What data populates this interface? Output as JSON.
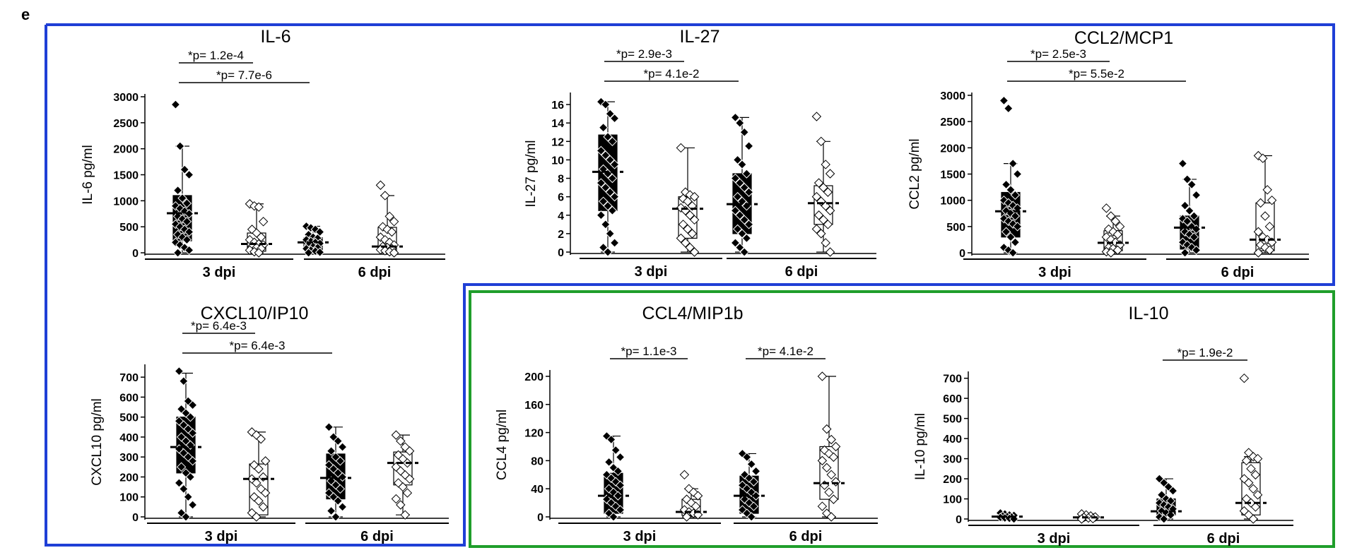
{
  "figure": {
    "corner_letter": "e",
    "box_colors": {
      "inflammatory": "#1f3fd6",
      "regulatory": "#1f9e2b"
    }
  },
  "chart_data": [
    {
      "type": "box",
      "title": "IL-6",
      "ylabel": "IL-6 pg/ml",
      "ylim": [
        0,
        3000
      ],
      "yticks": [
        0,
        500,
        1000,
        1500,
        2000,
        2500,
        3000
      ],
      "groups": [
        "3 dpi",
        "6 dpi"
      ],
      "series": [
        {
          "fill": "black",
          "min": 0,
          "q1": 230,
          "median": 760,
          "q3": 1100,
          "max": 2050,
          "points": [
            2850,
            2050,
            1600,
            1500,
            1200,
            1050,
            950,
            900,
            850,
            800,
            750,
            700,
            650,
            600,
            550,
            500,
            450,
            400,
            350,
            300,
            250,
            200,
            150,
            100,
            50,
            0
          ]
        },
        {
          "fill": "white",
          "min": 0,
          "q1": 30,
          "median": 170,
          "q3": 380,
          "max": 940,
          "points": [
            940,
            900,
            880,
            600,
            450,
            380,
            300,
            250,
            200,
            170,
            150,
            120,
            100,
            80,
            50,
            20,
            0
          ]
        },
        {
          "fill": "black",
          "min": 0,
          "q1": 60,
          "median": 200,
          "q3": 290,
          "max": 510,
          "points": [
            510,
            480,
            450,
            400,
            350,
            300,
            280,
            250,
            220,
            200,
            180,
            150,
            120,
            100,
            80,
            50,
            30,
            10,
            0
          ]
        },
        {
          "fill": "white",
          "min": 0,
          "q1": 30,
          "median": 120,
          "q3": 490,
          "max": 1100,
          "points": [
            1300,
            1100,
            700,
            600,
            500,
            450,
            400,
            300,
            250,
            200,
            150,
            120,
            100,
            80,
            60,
            40,
            20,
            0
          ]
        }
      ],
      "comparisons": [
        {
          "label": "*p= 1.2e-4",
          "from": 0,
          "to": 1
        },
        {
          "label": "*p= 7.7e-6",
          "from": 0,
          "to": 2
        }
      ]
    },
    {
      "type": "box",
      "title": "IL-27",
      "ylabel": "IL-27 pg/ml",
      "ylim": [
        0,
        17
      ],
      "yticks": [
        0,
        2,
        4,
        6,
        8,
        10,
        12,
        14,
        16
      ],
      "groups": [
        "3 dpi",
        "6 dpi"
      ],
      "series": [
        {
          "fill": "black",
          "min": 0,
          "q1": 4.5,
          "median": 8.7,
          "q3": 12.7,
          "max": 16.3,
          "points": [
            16.3,
            16,
            15,
            14.5,
            13.5,
            12.5,
            12,
            11,
            10.5,
            10,
            9.5,
            9,
            8.5,
            8,
            7.5,
            7,
            6.5,
            6,
            5.5,
            5,
            4.5,
            4,
            3,
            2,
            1,
            0.5,
            0
          ]
        },
        {
          "fill": "white",
          "min": 0,
          "q1": 1.5,
          "median": 4.7,
          "q3": 6,
          "max": 11.3,
          "points": [
            11.3,
            6.5,
            6.2,
            6,
            5.8,
            5.5,
            5,
            4.8,
            4.5,
            4,
            3.5,
            3,
            2.5,
            2,
            1.5,
            1,
            0.5,
            0
          ]
        },
        {
          "fill": "black",
          "min": 0,
          "q1": 2,
          "median": 5.2,
          "q3": 8.5,
          "max": 14.6,
          "points": [
            14.6,
            14,
            13,
            11.5,
            10,
            9.5,
            8.5,
            8,
            7.5,
            7,
            6.5,
            6,
            5.5,
            5,
            4.5,
            4,
            3.5,
            3,
            2.5,
            2,
            1.5,
            1,
            0.5,
            0
          ]
        },
        {
          "fill": "white",
          "min": 0,
          "q1": 3,
          "median": 5.3,
          "q3": 7.2,
          "max": 12,
          "points": [
            14.7,
            12,
            9.5,
            8.5,
            7.5,
            7,
            6.5,
            6,
            5.5,
            5,
            4.5,
            4,
            3.5,
            3,
            2.5,
            2,
            1,
            0
          ]
        }
      ],
      "comparisons": [
        {
          "label": "*p= 2.9e-3",
          "from": 0,
          "to": 1
        },
        {
          "label": "*p= 4.1e-2",
          "from": 0,
          "to": 2
        }
      ]
    },
    {
      "type": "box",
      "title": "CCL2/MCP1",
      "ylabel": "CCL2 pg/ml",
      "ylim": [
        0,
        3000
      ],
      "yticks": [
        0,
        500,
        1000,
        1500,
        2000,
        2500,
        3000
      ],
      "groups": [
        "3 dpi",
        "6 dpi"
      ],
      "series": [
        {
          "fill": "black",
          "min": 0,
          "q1": 300,
          "median": 790,
          "q3": 1150,
          "max": 1700,
          "points": [
            2900,
            2750,
            1700,
            1500,
            1300,
            1200,
            1100,
            1000,
            950,
            900,
            850,
            800,
            750,
            700,
            650,
            600,
            550,
            500,
            400,
            300,
            200,
            100,
            50,
            0
          ]
        },
        {
          "fill": "white",
          "min": 0,
          "q1": 40,
          "median": 190,
          "q3": 420,
          "max": 700,
          "points": [
            850,
            700,
            600,
            500,
            450,
            400,
            350,
            300,
            250,
            200,
            150,
            100,
            80,
            50,
            20,
            0
          ]
        },
        {
          "fill": "black",
          "min": 0,
          "q1": 70,
          "median": 480,
          "q3": 700,
          "max": 1400,
          "points": [
            1700,
            1400,
            1300,
            1100,
            900,
            800,
            700,
            650,
            600,
            500,
            450,
            400,
            350,
            300,
            200,
            150,
            100,
            50,
            0
          ]
        },
        {
          "fill": "white",
          "min": 0,
          "q1": 40,
          "median": 250,
          "q3": 950,
          "max": 1850,
          "points": [
            1850,
            1800,
            1200,
            1000,
            950,
            700,
            500,
            400,
            300,
            250,
            200,
            150,
            100,
            50,
            0
          ]
        }
      ],
      "comparisons": [
        {
          "label": "*p= 2.5e-3",
          "from": 0,
          "to": 1
        },
        {
          "label": "*p= 5.5e-2",
          "from": 0,
          "to": 2
        }
      ]
    },
    {
      "type": "box",
      "title": "CXCL10/IP10",
      "ylabel": "CXCL10 pg/ml",
      "ylim": [
        0,
        750
      ],
      "yticks": [
        0,
        100,
        200,
        300,
        400,
        500,
        600,
        700
      ],
      "groups": [
        "3 dpi",
        "6 dpi"
      ],
      "series": [
        {
          "fill": "black",
          "min": 0,
          "q1": 220,
          "median": 350,
          "q3": 500,
          "max": 720,
          "points": [
            730,
            680,
            580,
            560,
            540,
            520,
            500,
            480,
            460,
            440,
            420,
            400,
            380,
            360,
            340,
            320,
            300,
            280,
            250,
            220,
            200,
            170,
            140,
            100,
            60,
            20,
            0
          ]
        },
        {
          "fill": "white",
          "min": 0,
          "q1": 10,
          "median": 190,
          "q3": 265,
          "max": 425,
          "points": [
            425,
            410,
            390,
            280,
            260,
            240,
            200,
            190,
            170,
            140,
            120,
            100,
            80,
            50,
            20,
            0
          ]
        },
        {
          "fill": "black",
          "min": 0,
          "q1": 90,
          "median": 195,
          "q3": 315,
          "max": 450,
          "points": [
            450,
            400,
            380,
            350,
            330,
            300,
            280,
            260,
            240,
            220,
            200,
            180,
            160,
            140,
            120,
            100,
            80,
            50,
            30,
            0
          ]
        },
        {
          "fill": "white",
          "min": 10,
          "q1": 160,
          "median": 270,
          "q3": 325,
          "max": 410,
          "points": [
            410,
            380,
            350,
            330,
            310,
            290,
            270,
            250,
            230,
            210,
            190,
            170,
            150,
            120,
            90,
            60,
            10
          ]
        }
      ],
      "comparisons": [
        {
          "label": "*p= 6.4e-3",
          "from": 0,
          "to": 1
        },
        {
          "label": "*p= 6.4e-3",
          "from": 0,
          "to": 2
        }
      ]
    },
    {
      "type": "box",
      "title": "CCL4/MIP1b",
      "ylabel": "CCL4 pg/ml",
      "ylim": [
        0,
        205
      ],
      "yticks": [
        0,
        40,
        80,
        120,
        160,
        200
      ],
      "groups": [
        "3 dpi",
        "6 dpi"
      ],
      "series": [
        {
          "fill": "black",
          "min": 0,
          "q1": 5,
          "median": 30,
          "q3": 62,
          "max": 115,
          "points": [
            115,
            110,
            95,
            85,
            78,
            70,
            65,
            60,
            55,
            50,
            45,
            40,
            35,
            30,
            25,
            20,
            15,
            10,
            5,
            0
          ]
        },
        {
          "fill": "white",
          "min": 0,
          "q1": 2,
          "median": 7,
          "q3": 25,
          "max": 40,
          "points": [
            60,
            40,
            35,
            30,
            25,
            20,
            15,
            10,
            7,
            5,
            3,
            0
          ]
        },
        {
          "fill": "black",
          "min": 0,
          "q1": 5,
          "median": 30,
          "q3": 58,
          "max": 90,
          "points": [
            90,
            85,
            75,
            65,
            60,
            55,
            50,
            45,
            40,
            35,
            30,
            25,
            20,
            15,
            10,
            5,
            0
          ]
        },
        {
          "fill": "white",
          "min": 0,
          "q1": 25,
          "median": 48,
          "q3": 100,
          "max": 200,
          "points": [
            200,
            125,
            110,
            100,
            95,
            90,
            85,
            80,
            70,
            60,
            50,
            45,
            35,
            25,
            15,
            5,
            0
          ]
        }
      ],
      "comparisons": [
        {
          "label": "*p= 1.1e-3",
          "from": 0,
          "to": 1
        },
        {
          "label": "*p= 4.1e-2",
          "from": 2,
          "to": 3
        }
      ]
    },
    {
      "type": "box",
      "title": "IL-10",
      "ylabel": "IL-10 pg/ml",
      "ylim": [
        0,
        720
      ],
      "yticks": [
        0,
        100,
        200,
        300,
        400,
        500,
        600,
        700
      ],
      "groups": [
        "3 dpi",
        "6 dpi"
      ],
      "series": [
        {
          "fill": "black",
          "min": 0,
          "q1": 0,
          "median": 12,
          "q3": 18,
          "max": 30,
          "points": [
            30,
            25,
            20,
            18,
            15,
            12,
            10,
            8,
            5,
            3,
            0
          ]
        },
        {
          "fill": "white",
          "min": 0,
          "q1": 0,
          "median": 8,
          "q3": 15,
          "max": 25,
          "points": [
            25,
            20,
            15,
            10,
            8,
            5,
            2,
            0
          ]
        },
        {
          "fill": "black",
          "min": 0,
          "q1": 20,
          "median": 38,
          "q3": 100,
          "max": 200,
          "points": [
            200,
            180,
            160,
            140,
            120,
            100,
            90,
            80,
            70,
            60,
            50,
            40,
            30,
            20,
            10,
            0
          ]
        },
        {
          "fill": "white",
          "min": 0,
          "q1": 20,
          "median": 80,
          "q3": 280,
          "max": 310,
          "points": [
            700,
            330,
            310,
            300,
            290,
            250,
            220,
            200,
            180,
            150,
            120,
            100,
            80,
            60,
            40,
            20,
            0
          ]
        }
      ],
      "comparisons": [
        {
          "label": "*p= 1.9e-2",
          "from": 2,
          "to": 3
        }
      ]
    }
  ]
}
